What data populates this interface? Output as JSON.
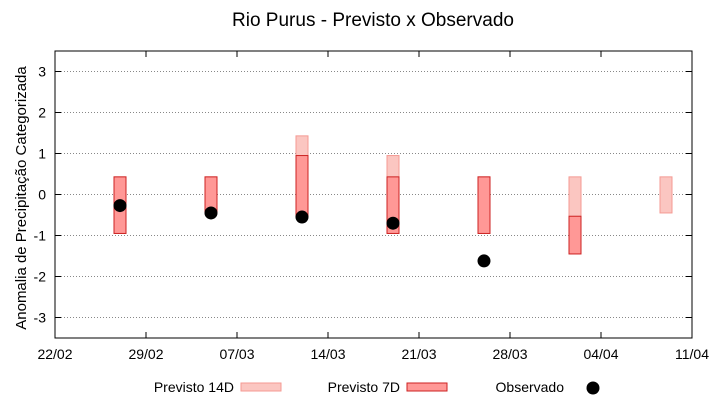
{
  "chart_data": {
    "type": "range-bar",
    "title": "Rio Purus - Previsto x Observado",
    "ylabel": "Anomalia de Precipitação Categorizada",
    "xlabel": "",
    "ylim": [
      -3.5,
      3.5
    ],
    "yticks": [
      -3,
      -2,
      -1,
      0,
      1,
      2,
      3
    ],
    "x_domain": [
      "2024-02-22",
      "2024-04-11"
    ],
    "x_tick_dates": [
      "2024-02-22",
      "2024-02-29",
      "2024-03-07",
      "2024-03-14",
      "2024-03-21",
      "2024-03-28",
      "2024-04-04",
      "2024-04-11"
    ],
    "x_tick_labels": [
      "22/02",
      "29/02",
      "07/03",
      "14/03",
      "21/03",
      "28/03",
      "04/04",
      "11/04"
    ],
    "grid": "horizontal-dotted",
    "legend_position": "bottom",
    "colors": {
      "previsto_14d_fill": "#fbc6c1",
      "previsto_14d_edge": "#f49a93",
      "previsto_7d_fill": "#ff9896",
      "previsto_7d_edge": "#cc2222",
      "observado": "#000000"
    },
    "series": [
      {
        "name": "Previsto 14D",
        "kind": "range",
        "points": [
          {
            "x": "2024-02-27",
            "low": -0.95,
            "high": 0.43
          },
          {
            "x": "2024-03-05",
            "low": -0.45,
            "high": 0.43
          },
          {
            "x": "2024-03-12",
            "low": -0.55,
            "high": 1.43
          },
          {
            "x": "2024-03-19",
            "low": -0.95,
            "high": 0.95
          },
          {
            "x": "2024-03-26",
            "low": -0.95,
            "high": 0.43
          },
          {
            "x": "2024-04-02",
            "low": -1.45,
            "high": 0.43
          },
          {
            "x": "2024-04-09",
            "low": -0.45,
            "high": 0.43
          }
        ]
      },
      {
        "name": "Previsto 7D",
        "kind": "range",
        "points": [
          {
            "x": "2024-02-27",
            "low": -0.95,
            "high": 0.43
          },
          {
            "x": "2024-03-05",
            "low": -0.45,
            "high": 0.43
          },
          {
            "x": "2024-03-12",
            "low": -0.55,
            "high": 0.95
          },
          {
            "x": "2024-03-19",
            "low": -0.95,
            "high": 0.43
          },
          {
            "x": "2024-03-26",
            "low": -0.95,
            "high": 0.43
          },
          {
            "x": "2024-04-02",
            "low": -1.45,
            "high": -0.53
          }
        ]
      },
      {
        "name": "Observado",
        "kind": "point",
        "points": [
          {
            "x": "2024-02-27",
            "y": -0.27
          },
          {
            "x": "2024-03-05",
            "y": -0.45
          },
          {
            "x": "2024-03-12",
            "y": -0.55
          },
          {
            "x": "2024-03-19",
            "y": -0.7
          },
          {
            "x": "2024-03-26",
            "y": -1.62
          }
        ]
      }
    ]
  }
}
